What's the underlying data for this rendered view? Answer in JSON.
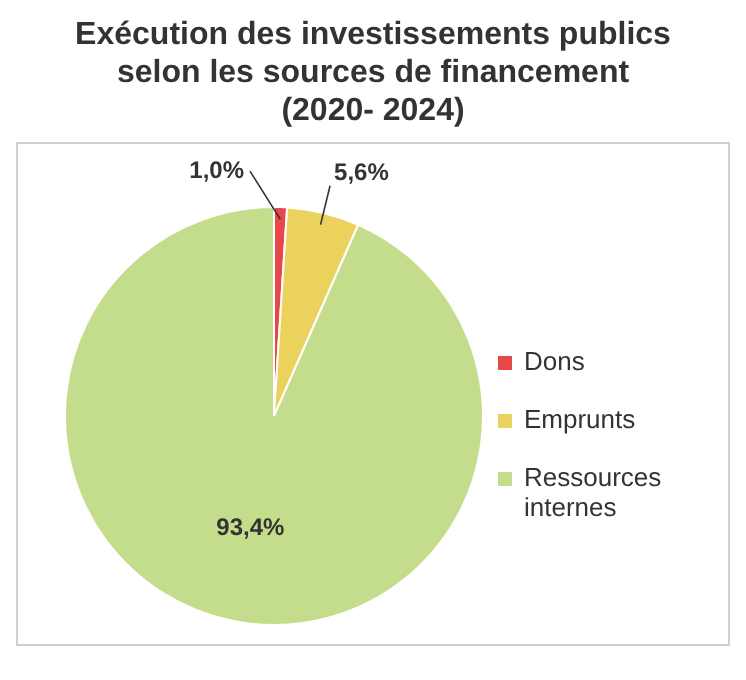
{
  "chart_data": {
    "type": "pie",
    "title": "Exécution des investissements publics selon les sources de financement (2020- 2024)",
    "categories": [
      "Dons",
      "Emprunts",
      "Ressources internes"
    ],
    "values": [
      1.0,
      5.6,
      93.4
    ],
    "value_labels": [
      "1,0%",
      "5,6%",
      "93,4%"
    ],
    "colors": [
      "#e8474a",
      "#ebd25c",
      "#c4dd8c"
    ],
    "legend": "right"
  }
}
